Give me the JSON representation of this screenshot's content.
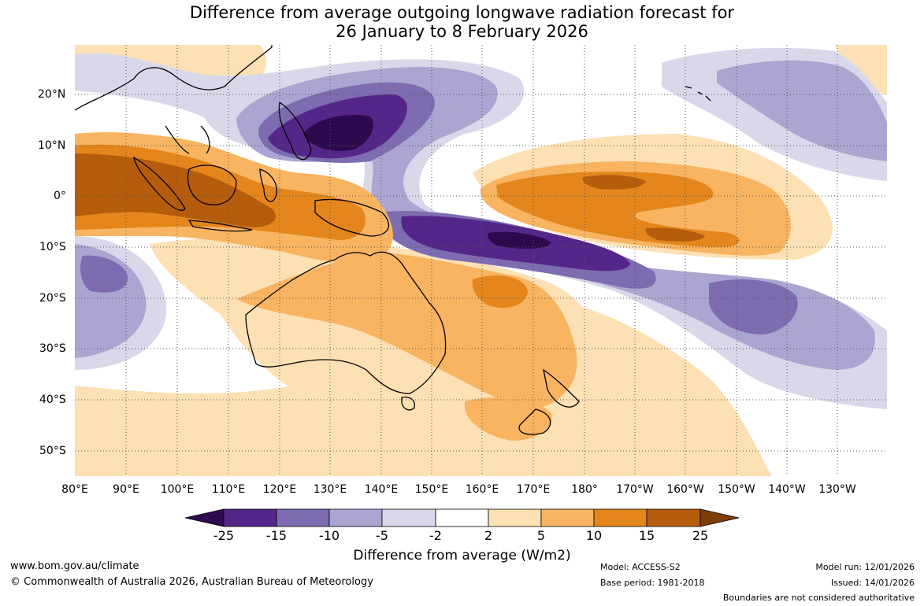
{
  "title": {
    "line1": "Difference from average outgoing longwave radiation forecast for",
    "line2": "26 January to 8 February 2026"
  },
  "axes": {
    "lon_labels": [
      "80°E",
      "90°E",
      "100°E",
      "110°E",
      "120°E",
      "130°E",
      "140°E",
      "150°E",
      "160°E",
      "170°E",
      "180°",
      "170°W",
      "160°W",
      "150°W",
      "140°W",
      "130°W"
    ],
    "lat_labels": [
      "20°N",
      "10°N",
      "0°",
      "10°S",
      "20°S",
      "30°S",
      "40°S",
      "50°S"
    ]
  },
  "colorbar": {
    "labels": [
      "-25",
      "-15",
      "-10",
      "-5",
      "-2",
      "2",
      "5",
      "10",
      "15",
      "25"
    ],
    "colors": [
      "#2d0a4e",
      "#55268a",
      "#7d6cb0",
      "#aba5d1",
      "#d9d8eb",
      "#ffffff",
      "#fde0b4",
      "#f8b461",
      "#e4861c",
      "#b55d0c",
      "#7d3e07"
    ],
    "title": "Difference from average (W/m2)"
  },
  "footer": {
    "website": "www.bom.gov.au/climate",
    "copyright": "© Commonwealth of Australia 2026, Australian Bureau of Meteorology",
    "model": "Model: ACCESS-S2",
    "base_period": "Base period: 1981-2018",
    "model_run": "Model run: 12/01/2026",
    "issued": "Issued: 14/01/2026",
    "disclaimer": "Boundaries are not considered authoritative"
  }
}
